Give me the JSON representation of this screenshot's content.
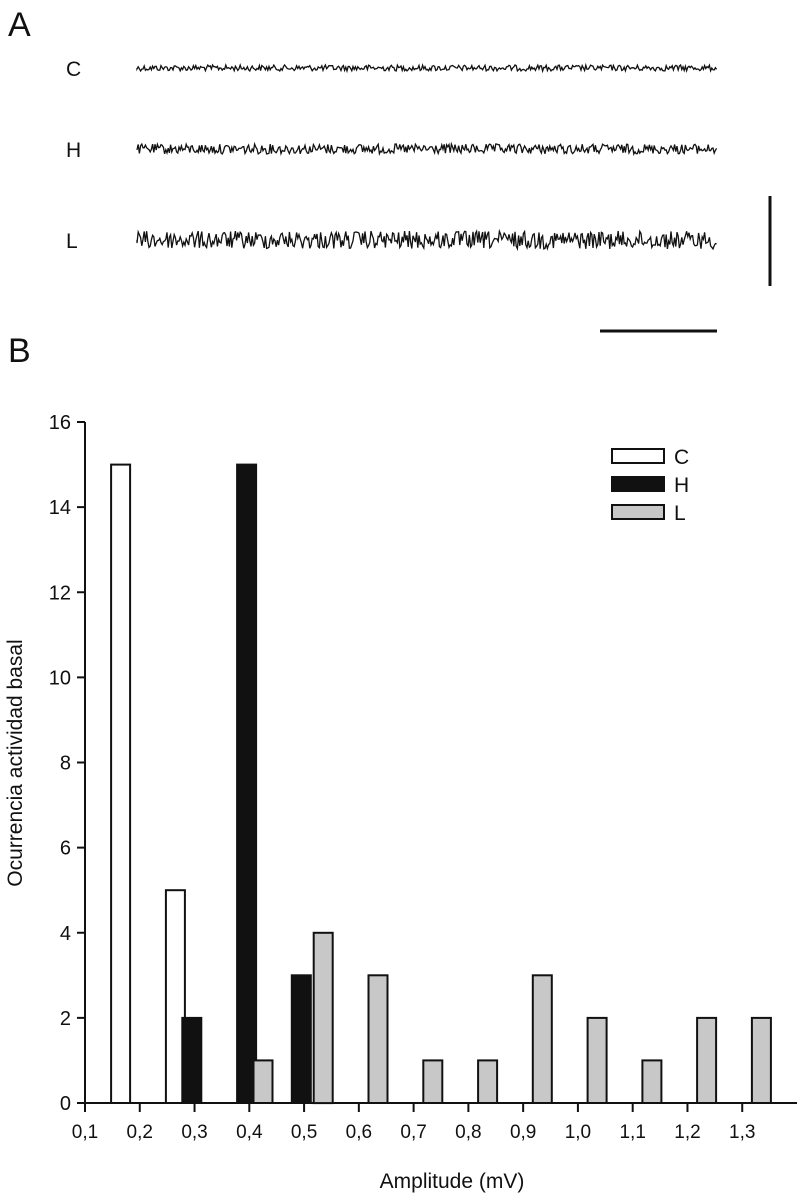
{
  "panel_a": {
    "label": "A",
    "traces": [
      {
        "name": "C",
        "amplitude": 1
      },
      {
        "name": "H",
        "amplitude": 2
      },
      {
        "name": "L",
        "amplitude": 3
      }
    ]
  },
  "panel_b": {
    "label": "B"
  },
  "chart_data": {
    "type": "bar",
    "xlabel": "Amplitude (mV)",
    "ylabel": "Ocurrencia actividad basal",
    "ylim": [
      0,
      16
    ],
    "yticks": [
      "0",
      "2",
      "4",
      "6",
      "8",
      "10",
      "12",
      "14",
      "16"
    ],
    "xticks": [
      "0,1",
      "0,2",
      "0,3",
      "0,4",
      "0,5",
      "0,6",
      "0,7",
      "0,8",
      "0,9",
      "1,0",
      "1,1",
      "1,2",
      "1,3"
    ],
    "xlim": [
      0.1,
      1.4
    ],
    "legend_position": "top-right",
    "series": [
      {
        "name": "C",
        "color": "#ffffff",
        "points": [
          {
            "x": 0.165,
            "y": 15
          },
          {
            "x": 0.265,
            "y": 5
          }
        ]
      },
      {
        "name": "H",
        "color": "#111111",
        "points": [
          {
            "x": 0.295,
            "y": 2
          },
          {
            "x": 0.395,
            "y": 15
          },
          {
            "x": 0.495,
            "y": 3
          }
        ]
      },
      {
        "name": "L",
        "color": "#c8c8c8",
        "points": [
          {
            "x": 0.425,
            "y": 1
          },
          {
            "x": 0.535,
            "y": 4
          },
          {
            "x": 0.635,
            "y": 3
          },
          {
            "x": 0.735,
            "y": 1
          },
          {
            "x": 0.835,
            "y": 1
          },
          {
            "x": 0.935,
            "y": 3
          },
          {
            "x": 1.035,
            "y": 2
          },
          {
            "x": 1.135,
            "y": 1
          },
          {
            "x": 1.235,
            "y": 2
          },
          {
            "x": 1.335,
            "y": 2
          }
        ]
      }
    ]
  }
}
